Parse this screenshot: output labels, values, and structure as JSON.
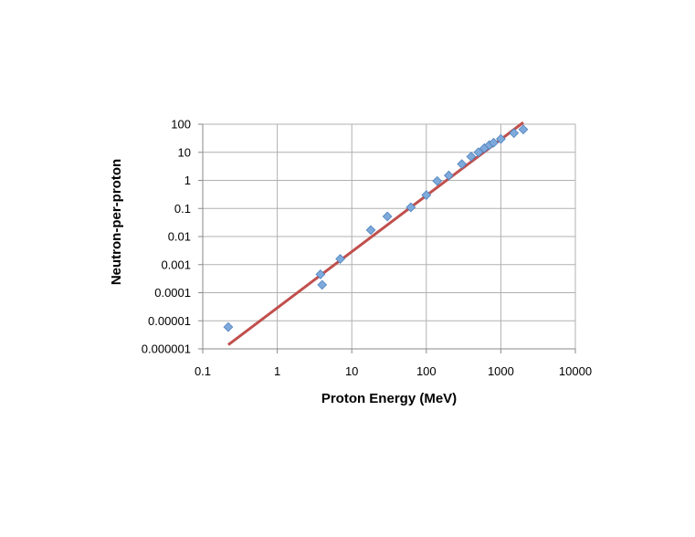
{
  "chart_data": {
    "type": "scatter",
    "xlabel": "Proton Energy (MeV)",
    "ylabel": "Neutron-per-proton",
    "x_scale": "log",
    "y_scale": "log",
    "xlim": [
      0.1,
      10000
    ],
    "ylim": [
      1e-06,
      100
    ],
    "x_ticks": [
      "0.1",
      "1",
      "10",
      "100",
      "1000",
      "10000"
    ],
    "y_ticks": [
      "0.000001",
      "0.00001",
      "0.0001",
      "0.001",
      "0.01",
      "0.1",
      "1",
      "10",
      "100"
    ],
    "grid": true,
    "legend": "none",
    "series": [
      {
        "marker": "diamond",
        "color": "#7eaadb",
        "points": [
          {
            "x": 0.22,
            "y": 6e-06
          },
          {
            "x": 3.8,
            "y": 0.00045
          },
          {
            "x": 4.0,
            "y": 0.00019
          },
          {
            "x": 7.0,
            "y": 0.0016
          },
          {
            "x": 18,
            "y": 0.017
          },
          {
            "x": 30,
            "y": 0.052
          },
          {
            "x": 62,
            "y": 0.11
          },
          {
            "x": 100,
            "y": 0.3
          },
          {
            "x": 140,
            "y": 0.95
          },
          {
            "x": 200,
            "y": 1.5
          },
          {
            "x": 300,
            "y": 3.8
          },
          {
            "x": 400,
            "y": 7
          },
          {
            "x": 500,
            "y": 10
          },
          {
            "x": 600,
            "y": 14
          },
          {
            "x": 700,
            "y": 18
          },
          {
            "x": 800,
            "y": 22
          },
          {
            "x": 1000,
            "y": 30
          },
          {
            "x": 1500,
            "y": 48
          },
          {
            "x": 2000,
            "y": 65
          }
        ]
      }
    ],
    "fit_line": {
      "type": "line",
      "color": "#c0504d",
      "points": [
        {
          "x": 0.22,
          "y": 1.4e-06
        },
        {
          "x": 2000,
          "y": 115
        }
      ]
    }
  }
}
